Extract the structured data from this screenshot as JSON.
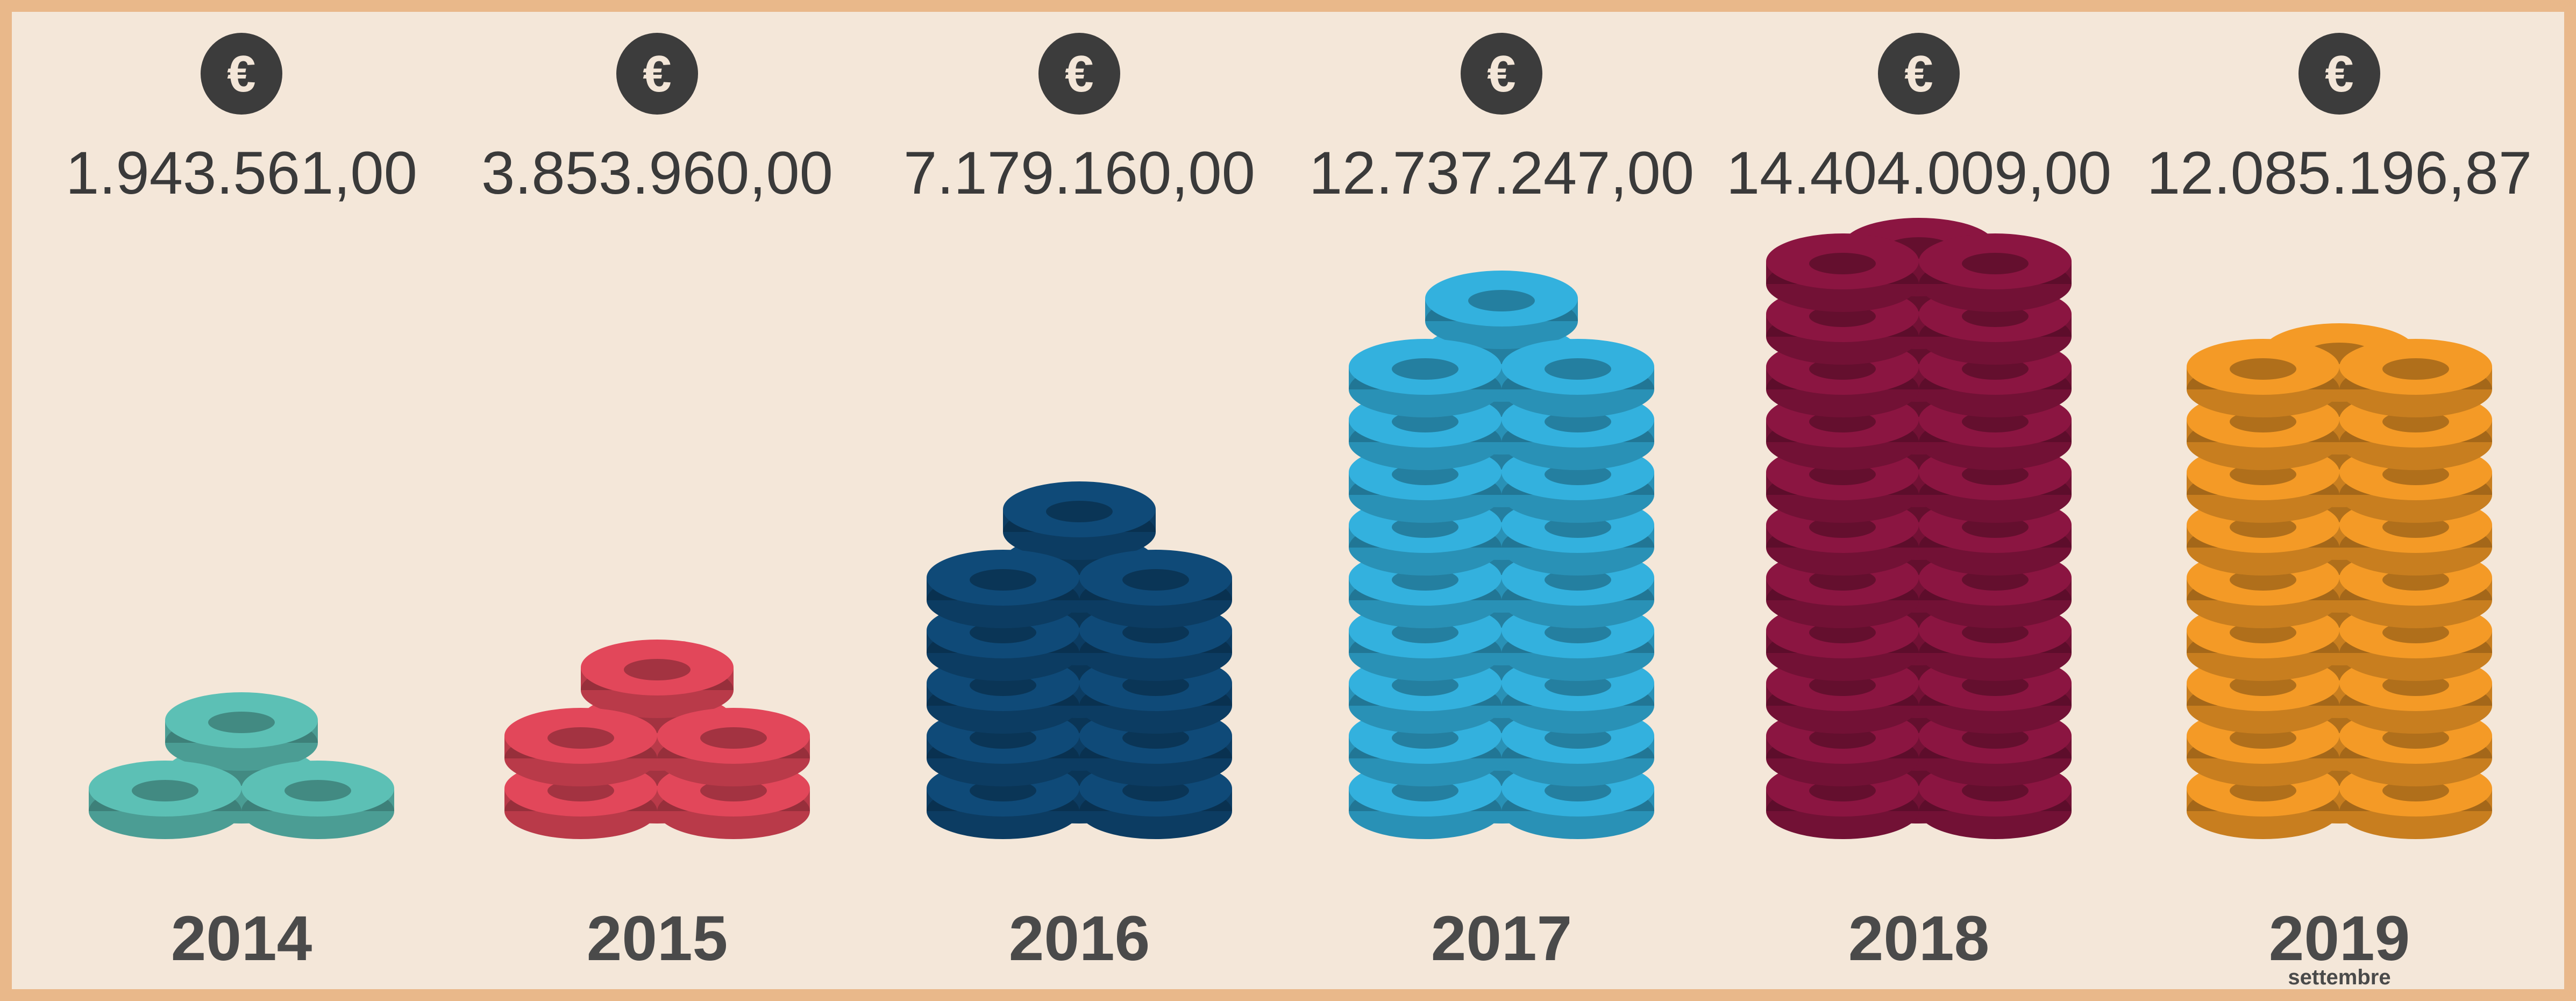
{
  "chart_data": {
    "type": "coin-stack",
    "currency_symbol": "€",
    "categories": [
      "2014",
      "2015",
      "2016",
      "2017",
      "2018",
      "2019"
    ],
    "values": [
      1943561.0,
      3853960.0,
      7179160.0,
      12737247.0,
      14404009.0,
      12085196.87
    ],
    "value_labels": [
      "1.943.561,00",
      "3.853.960,00",
      "7.179.160,00",
      "12.737.247,00",
      "14.404.009,00",
      "12.085.196,87"
    ],
    "colors": [
      "#5cc0b5",
      "#e2475a",
      "#0f4a78",
      "#33b1de",
      "#8b1541",
      "#f49a26"
    ],
    "annotation": "settembre",
    "ylim": [
      0,
      15000000
    ]
  }
}
